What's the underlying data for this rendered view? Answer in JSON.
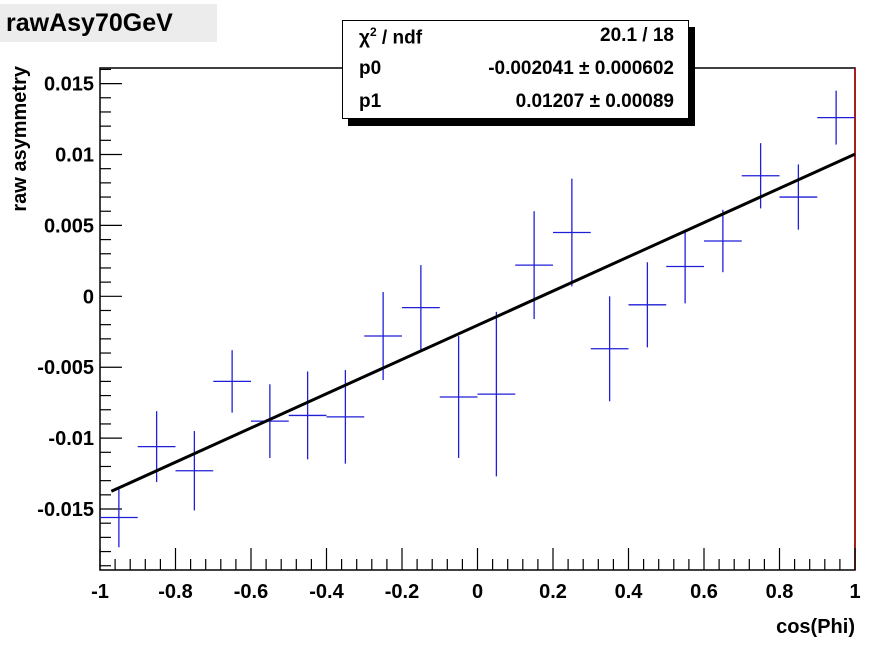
{
  "title": "rawAsy70GeV",
  "stats": {
    "rows": [
      {
        "name_html": "χ² / ndf",
        "value": "20.1 / 18"
      },
      {
        "name_html": "p0",
        "value": "-0.002041 ± 0.000602"
      },
      {
        "name_html": "p1",
        "value": "0.01207 ± 0.00089"
      }
    ]
  },
  "chart_data": {
    "type": "scatter",
    "xlabel": "cos(Phi)",
    "ylabel": "raw asymmetry",
    "xlim": [
      -1,
      1
    ],
    "ylim": [
      -0.0193,
      0.0161
    ],
    "xticks": [
      -1,
      -0.8,
      -0.6,
      -0.4,
      -0.2,
      0,
      0.2,
      0.4,
      0.6,
      0.8,
      1
    ],
    "xtick_labels": [
      "-1",
      "-0.8",
      "-0.6",
      "-0.4",
      "-0.2",
      "0",
      "0.2",
      "0.4",
      "0.6",
      "0.8",
      "1"
    ],
    "yticks": [
      -0.015,
      -0.01,
      -0.005,
      0,
      0.005,
      0.01,
      0.015
    ],
    "ytick_labels": [
      "-0.015",
      "-0.01",
      "-0.005",
      "0",
      "0.005",
      "0.01",
      "0.015"
    ],
    "points": [
      {
        "x": -0.95,
        "y": -0.0156,
        "xerr": 0.05,
        "yerr": 0.0021
      },
      {
        "x": -0.85,
        "y": -0.0106,
        "xerr": 0.05,
        "yerr": 0.0025
      },
      {
        "x": -0.75,
        "y": -0.0123,
        "xerr": 0.05,
        "yerr": 0.0028
      },
      {
        "x": -0.65,
        "y": -0.006,
        "xerr": 0.05,
        "yerr": 0.0022
      },
      {
        "x": -0.55,
        "y": -0.0088,
        "xerr": 0.05,
        "yerr": 0.0026
      },
      {
        "x": -0.45,
        "y": -0.0084,
        "xerr": 0.05,
        "yerr": 0.0031
      },
      {
        "x": -0.35,
        "y": -0.0085,
        "xerr": 0.05,
        "yerr": 0.0033
      },
      {
        "x": -0.25,
        "y": -0.0028,
        "xerr": 0.05,
        "yerr": 0.0031
      },
      {
        "x": -0.15,
        "y": -0.0008,
        "xerr": 0.05,
        "yerr": 0.003
      },
      {
        "x": -0.05,
        "y": -0.0071,
        "xerr": 0.05,
        "yerr": 0.0043
      },
      {
        "x": 0.05,
        "y": -0.0069,
        "xerr": 0.05,
        "yerr": 0.0058
      },
      {
        "x": 0.15,
        "y": 0.0022,
        "xerr": 0.05,
        "yerr": 0.0038
      },
      {
        "x": 0.25,
        "y": 0.0045,
        "xerr": 0.05,
        "yerr": 0.0038
      },
      {
        "x": 0.35,
        "y": -0.0037,
        "xerr": 0.05,
        "yerr": 0.0037
      },
      {
        "x": 0.45,
        "y": -0.0006,
        "xerr": 0.05,
        "yerr": 0.003
      },
      {
        "x": 0.55,
        "y": 0.0021,
        "xerr": 0.05,
        "yerr": 0.0026
      },
      {
        "x": 0.65,
        "y": 0.0039,
        "xerr": 0.05,
        "yerr": 0.0022
      },
      {
        "x": 0.75,
        "y": 0.0085,
        "xerr": 0.05,
        "yerr": 0.0023
      },
      {
        "x": 0.85,
        "y": 0.007,
        "xerr": 0.05,
        "yerr": 0.0023
      },
      {
        "x": 0.95,
        "y": 0.0126,
        "xerr": 0.05,
        "yerr": 0.0019
      }
    ],
    "fit": {
      "p0": -0.002041,
      "p1": 0.01207,
      "x_range": [
        -0.97,
        1
      ]
    },
    "colors": {
      "points": "#1f1fd8",
      "fit": "#000000",
      "frame": "#000000",
      "right_edge": "#b00000"
    },
    "grid": false,
    "legend": "top-center"
  }
}
